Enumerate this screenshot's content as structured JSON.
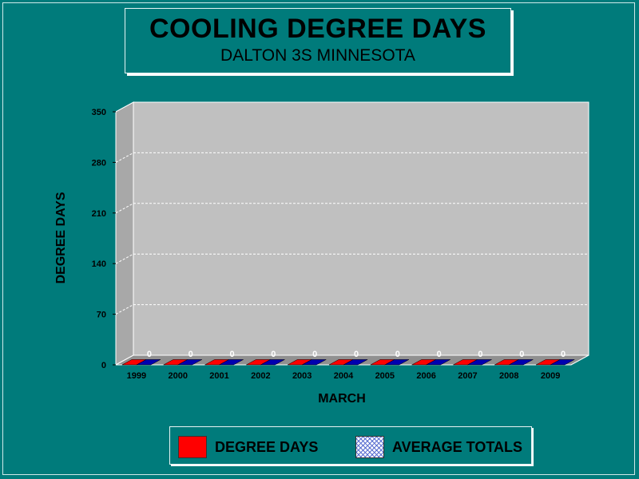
{
  "colors": {
    "background": "#007b7b",
    "plot_area": "#c0c0c0",
    "degree_days": "#ff0000",
    "average_totals": "#0000b0"
  },
  "chart_data": {
    "type": "bar",
    "title": "COOLING DEGREE DAYS",
    "subtitle": "DALTON 3S MINNESOTA",
    "xlabel": "MARCH",
    "ylabel": "DEGREE DAYS",
    "categories": [
      "1999",
      "2000",
      "2001",
      "2002",
      "2003",
      "2004",
      "2005",
      "2006",
      "2007",
      "2008",
      "2009"
    ],
    "series": [
      {
        "name": "DEGREE DAYS",
        "values": [
          0,
          0,
          0,
          0,
          0,
          0,
          0,
          0,
          0,
          0,
          0
        ]
      },
      {
        "name": "AVERAGE TOTALS",
        "values": [
          0,
          0,
          0,
          0,
          0,
          0,
          0,
          0,
          0,
          0,
          0
        ]
      }
    ],
    "data_labels": [
      "0",
      "0",
      "0",
      "0",
      "0",
      "0",
      "0",
      "0",
      "0",
      "0",
      "0"
    ],
    "ylim": [
      0,
      350
    ],
    "yticks": [
      "0",
      "70",
      "140",
      "210",
      "280",
      "350"
    ],
    "grid": true,
    "legend_position": "bottom"
  },
  "legend": {
    "degree_days": "DEGREE DAYS",
    "average_totals": "AVERAGE TOTALS",
    "degree_days_icon": "red-swatch",
    "average_totals_icon": "hatched-blue-swatch"
  }
}
